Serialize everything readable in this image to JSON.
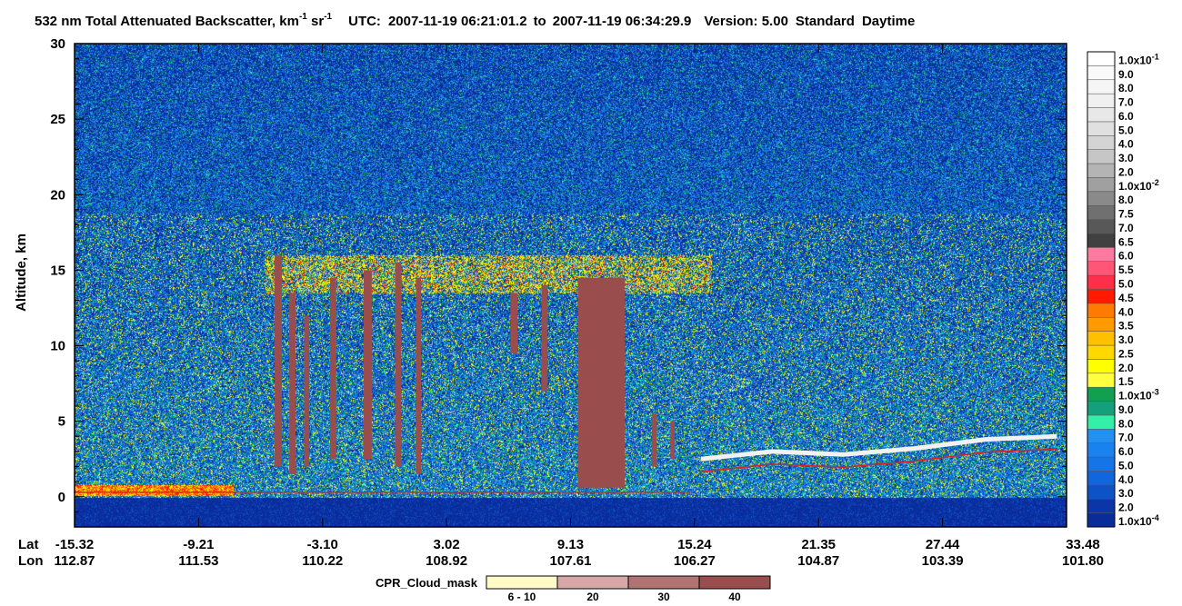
{
  "chart_data": {
    "type": "heatmap",
    "title": {
      "quantity": "532 nm Total Attenuated Backscatter, km",
      "unit_exp1": "-1",
      "unit_sr": "sr",
      "unit_exp2": "-1",
      "utc_label": "UTC:",
      "start": "2007-11-19 06:21:01.2",
      "to_word": "to",
      "end": "2007-11-19 06:34:29.9",
      "version": "Version: 5.00",
      "mode": "Standard",
      "time_of_day": "Daytime"
    },
    "ylabel": "Altitude, km",
    "ylim": [
      -2,
      30
    ],
    "yticks": [
      0,
      5,
      10,
      15,
      20,
      25,
      30
    ],
    "x_row_labels": [
      "Lat",
      "Lon"
    ],
    "x_ticks": [
      {
        "lat": "-15.32",
        "lon": "112.87"
      },
      {
        "lat": "-9.21",
        "lon": "111.53"
      },
      {
        "lat": "-3.10",
        "lon": "110.22"
      },
      {
        "lat": "3.02",
        "lon": "108.92"
      },
      {
        "lat": "9.13",
        "lon": "107.61"
      },
      {
        "lat": "15.24",
        "lon": "106.27"
      },
      {
        "lat": "21.35",
        "lon": "104.87"
      },
      {
        "lat": "27.44",
        "lon": "103.39"
      },
      {
        "lat": "33.48",
        "lon": "101.80"
      }
    ],
    "colorbar": [
      {
        "label": "1.0x10",
        "exp": "-4",
        "color": "#0a2b9a"
      },
      {
        "label": "2.0",
        "color": "#0b36a8"
      },
      {
        "label": "3.0",
        "color": "#0e52c8"
      },
      {
        "label": "4.0",
        "color": "#1166dd"
      },
      {
        "label": "5.0",
        "color": "#1474e8"
      },
      {
        "label": "6.0",
        "color": "#1a82ee"
      },
      {
        "label": "7.0",
        "color": "#2391f2"
      },
      {
        "label": "8.0",
        "color": "#33f0a8"
      },
      {
        "label": "9.0",
        "color": "#14a07a"
      },
      {
        "label": "1.0x10",
        "exp": "-3",
        "color": "#12a050"
      },
      {
        "label": "1.5",
        "color": "#ffff40"
      },
      {
        "label": "2.0",
        "color": "#ffff00"
      },
      {
        "label": "2.5",
        "color": "#ffd800"
      },
      {
        "label": "3.0",
        "color": "#ffc000"
      },
      {
        "label": "3.5",
        "color": "#ff9a00"
      },
      {
        "label": "4.0",
        "color": "#ff7a00"
      },
      {
        "label": "4.5",
        "color": "#ff1a00"
      },
      {
        "label": "5.0",
        "color": "#ff2e4a"
      },
      {
        "label": "5.5",
        "color": "#ff5577"
      },
      {
        "label": "6.0",
        "color": "#ff7aa0"
      },
      {
        "label": "6.5",
        "color": "#404040"
      },
      {
        "label": "7.0",
        "color": "#585858"
      },
      {
        "label": "7.5",
        "color": "#707070"
      },
      {
        "label": "8.0",
        "color": "#8a8a8a"
      },
      {
        "label": "1.0x10",
        "exp": "-2",
        "color": "#a0a0a0"
      },
      {
        "label": "2.0",
        "color": "#b4b4b4"
      },
      {
        "label": "3.0",
        "color": "#c6c6c6"
      },
      {
        "label": "4.0",
        "color": "#d4d4d4"
      },
      {
        "label": "5.0",
        "color": "#e0e0e0"
      },
      {
        "label": "6.0",
        "color": "#e8e8e8"
      },
      {
        "label": "7.0",
        "color": "#f0f0f0"
      },
      {
        "label": "8.0",
        "color": "#f5f5f5"
      },
      {
        "label": "9.0",
        "color": "#fafafa"
      },
      {
        "label": "1.0x10",
        "exp": "-1",
        "color": "#ffffff"
      }
    ],
    "cpr_legend": {
      "title": "CPR_Cloud_mask",
      "bins": [
        {
          "label": "6 - 10",
          "color": "#fffbc8"
        },
        {
          "label": "20",
          "color": "#d6a7a7"
        },
        {
          "label": "30",
          "color": "#b07474"
        },
        {
          "label": "40",
          "color": "#9a4d4d"
        }
      ]
    },
    "features": {
      "surface_altitude_km": 0.3,
      "tropopause_layer_km": [
        13.5,
        16
      ],
      "cpr_columns": [
        {
          "lat": -5.3,
          "top": 16.0,
          "bottom": 2.0,
          "width": 0.35
        },
        {
          "lat": -4.6,
          "top": 13.5,
          "bottom": 1.5,
          "width": 0.3
        },
        {
          "lat": -3.9,
          "top": 12.0,
          "bottom": 2.0,
          "width": 0.25
        },
        {
          "lat": -2.6,
          "top": 14.5,
          "bottom": 2.5,
          "width": 0.3
        },
        {
          "lat": -0.9,
          "top": 15.0,
          "bottom": 2.5,
          "width": 0.4
        },
        {
          "lat": 0.6,
          "top": 15.5,
          "bottom": 2.0,
          "width": 0.3
        },
        {
          "lat": 1.6,
          "top": 14.5,
          "bottom": 1.5,
          "width": 0.25
        },
        {
          "lat": 6.3,
          "top": 13.5,
          "bottom": 9.5,
          "width": 0.35
        },
        {
          "lat": 7.8,
          "top": 14.0,
          "bottom": 7.0,
          "width": 0.3
        },
        {
          "lat": 10.6,
          "top": 14.5,
          "bottom": 0.6,
          "width": 2.3
        },
        {
          "lat": 13.2,
          "top": 5.5,
          "bottom": 2.0,
          "width": 0.25
        },
        {
          "lat": 14.1,
          "top": 5.0,
          "bottom": 2.5,
          "width": 0.2
        }
      ],
      "low_cloud_layer": [
        {
          "lat": 15.5,
          "alt": 2.5
        },
        {
          "lat": 19.0,
          "alt": 3.0
        },
        {
          "lat": 22.5,
          "alt": 2.8
        },
        {
          "lat": 26.0,
          "alt": 3.2
        },
        {
          "lat": 29.5,
          "alt": 3.8
        },
        {
          "lat": 33.0,
          "alt": 4.0
        }
      ]
    }
  }
}
